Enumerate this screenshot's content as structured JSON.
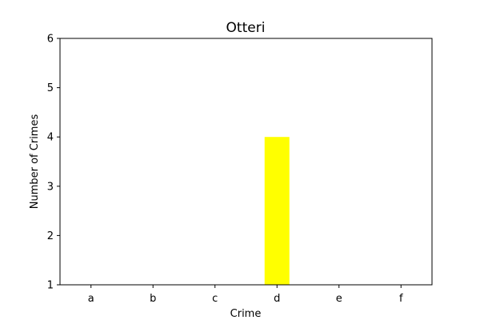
{
  "chart_data": {
    "type": "bar",
    "title": "Otteri",
    "xlabel": "Crime",
    "ylabel": "Number of Crimes",
    "categories": [
      "a",
      "b",
      "c",
      "d",
      "e",
      "f"
    ],
    "values": [
      1,
      1,
      1,
      4,
      1,
      1
    ],
    "ylim": [
      1,
      6
    ],
    "yticks": [
      1,
      2,
      3,
      4,
      5,
      6
    ],
    "bar_color": "#ffff00",
    "grid": false,
    "legend": "none"
  }
}
